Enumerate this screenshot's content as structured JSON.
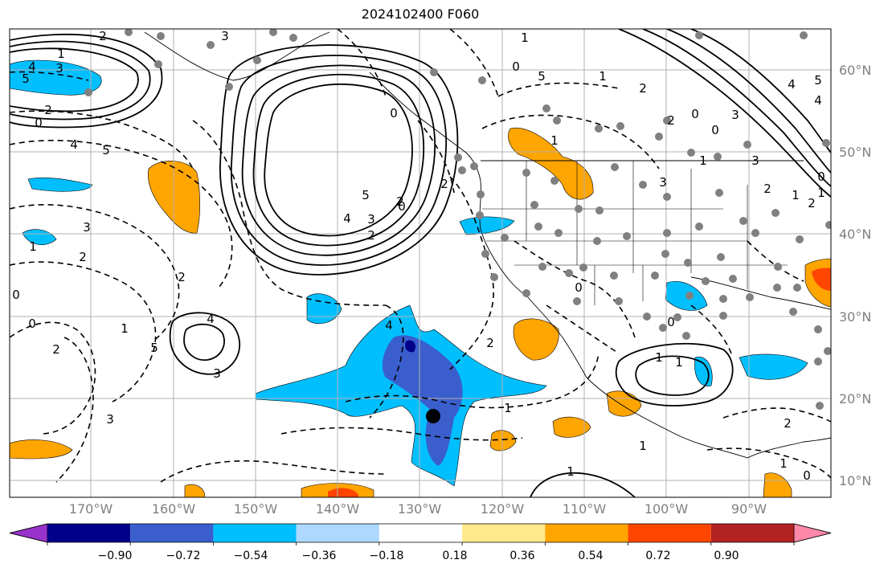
{
  "title": "2024102400 F060",
  "lat_labels": [
    "60°N",
    "50°N",
    "40°N",
    "30°N",
    "20°N",
    "10°N"
  ],
  "lon_labels": [
    "170°W",
    "160°W",
    "150°W",
    "140°W",
    "130°W",
    "120°W",
    "110°W",
    "100°W",
    "90°W"
  ],
  "colorbar": {
    "labels": [
      "−0.90",
      "−0.72",
      "−0.54",
      "−0.36",
      "−0.18",
      "0.18",
      "0.36",
      "0.54",
      "0.72",
      "0.90"
    ],
    "colors": [
      "#9932cc",
      "#00008b",
      "#3a5fcd",
      "#00bfff",
      "#add8ff",
      "#ffffff",
      "#ffe98a",
      "#ffa500",
      "#ff4500",
      "#b22222",
      "#ff88aa"
    ]
  },
  "contour_labels": [
    "2",
    "1",
    "3",
    "4",
    "5",
    "2",
    "0",
    "4",
    "5",
    "3",
    "5",
    "4",
    "3",
    "2",
    "0",
    "3",
    "2",
    "1",
    "0",
    "2",
    "1",
    "0",
    "2",
    "3",
    "4",
    "5",
    "3",
    "4",
    "2",
    "1",
    "0",
    "1",
    "1",
    "1",
    "2",
    "1",
    "0",
    "2",
    "2",
    "0",
    "0",
    "2",
    "1",
    "1",
    "0",
    "1",
    "2",
    "0",
    "1",
    "3",
    "4",
    "5",
    "4",
    "3",
    "2",
    "0",
    "1",
    "1",
    "2",
    "3",
    "5",
    "1",
    "0"
  ],
  "fill_colors": {
    "land_line": "#000000",
    "grid": "#b0b0b0",
    "station": "#808080",
    "marker": "#000000"
  }
}
